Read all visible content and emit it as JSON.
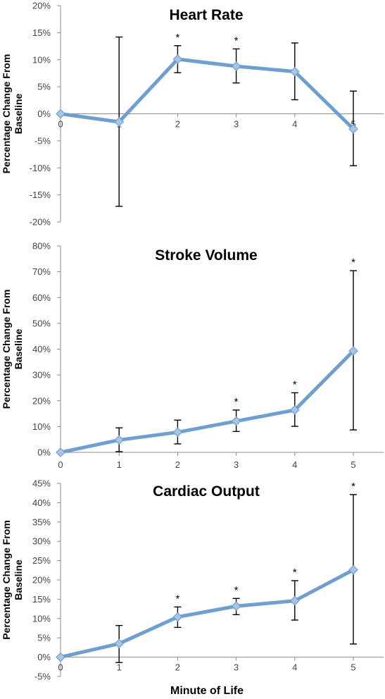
{
  "chart_data": [
    {
      "type": "line",
      "title": "Heart Rate",
      "ylabel": [
        "Percentage Change From",
        "Baseline"
      ],
      "xlabel": "",
      "categories": [
        "0",
        "1",
        "2",
        "3",
        "4",
        "5"
      ],
      "ylim": [
        -20,
        20
      ],
      "ytick_step": 5,
      "yticks": [
        "20%",
        "15%",
        "10%",
        "5%",
        "0%",
        "-5%",
        "-10%",
        "-15%",
        "-20%"
      ],
      "series": [
        {
          "values": [
            0,
            -1.5,
            10.1,
            8.8,
            7.8,
            -2.8
          ],
          "error_low": [
            0,
            -17.1,
            7.6,
            5.7,
            2.6,
            -9.6
          ],
          "error_high": [
            0,
            14.2,
            12.6,
            12.0,
            13.1,
            4.2
          ],
          "significant": [
            false,
            false,
            true,
            true,
            false,
            false
          ]
        }
      ],
      "marker_label": "*",
      "line_color": "#6f9fd0",
      "marker_color": "#a9c5e4"
    },
    {
      "type": "line",
      "title": "Stroke Volume",
      "ylabel": [
        "Percentage  Change From",
        "Baseline"
      ],
      "xlabel": "",
      "categories": [
        "0",
        "1",
        "2",
        "3",
        "4",
        "5"
      ],
      "ylim": [
        0,
        80
      ],
      "ytick_step": 10,
      "yticks": [
        "80%",
        "70%",
        "60%",
        "50%",
        "40%",
        "30%",
        "20%",
        "10%",
        "0%"
      ],
      "series": [
        {
          "values": [
            0,
            4.8,
            7.8,
            12.1,
            16.4,
            39.3
          ],
          "error_low": [
            0,
            0.3,
            3.3,
            8.1,
            10.1,
            8.7
          ],
          "error_high": [
            0,
            9.5,
            12.5,
            16.4,
            23.1,
            70.4
          ],
          "significant": [
            false,
            false,
            false,
            true,
            true,
            true
          ]
        }
      ],
      "marker_label": "*",
      "line_color": "#6f9fd0",
      "marker_color": "#a9c5e4"
    },
    {
      "type": "line",
      "title": "Cardiac Output",
      "ylabel": [
        "Percentage Change From",
        "Baseline"
      ],
      "xlabel": "Minute of Life",
      "categories": [
        "0",
        "1",
        "2",
        "3",
        "4",
        "5"
      ],
      "ylim": [
        -5,
        45
      ],
      "ytick_step": 5,
      "yticks": [
        "45%",
        "40%",
        "35%",
        "30%",
        "25%",
        "20%",
        "15%",
        "10%",
        "5%",
        "0%",
        "-5%"
      ],
      "series": [
        {
          "values": [
            0,
            3.5,
            10.4,
            13.2,
            14.6,
            22.6
          ],
          "error_low": [
            0,
            -1.4,
            7.7,
            11.0,
            9.6,
            3.4
          ],
          "error_high": [
            0,
            8.2,
            13.0,
            15.2,
            19.8,
            42.1
          ],
          "significant": [
            false,
            false,
            true,
            true,
            true,
            true
          ]
        }
      ],
      "marker_label": "*",
      "line_color": "#6f9fd0",
      "marker_color": "#a9c5e4"
    }
  ]
}
